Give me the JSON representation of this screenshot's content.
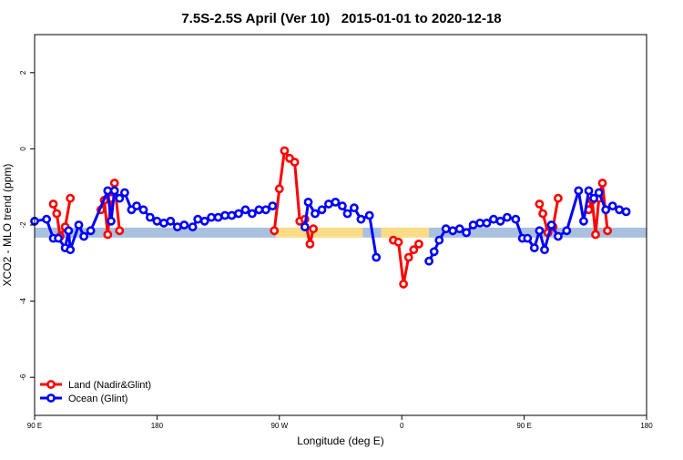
{
  "chart_data": {
    "type": "line",
    "title": "7.5S-2.5S April (Ver 10)   2015-01-01 to 2020-12-18",
    "xlabel": "Longitude (deg E)",
    "ylabel": "XCO2 - MLO trend (ppm)",
    "xlim": [
      90,
      450
    ],
    "ylim": [
      -7,
      3
    ],
    "x_ticks": [
      {
        "value": 90,
        "label": "90 E"
      },
      {
        "value": 162,
        "label": "180"
      },
      {
        "value": 234,
        "label": "90 W"
      },
      {
        "value": 306,
        "label": "0"
      },
      {
        "value": 378,
        "label": "90 E"
      },
      {
        "value": 450,
        "label": "180"
      }
    ],
    "y_ticks": [
      {
        "value": 2,
        "label": "2"
      },
      {
        "value": 0,
        "label": "0"
      },
      {
        "value": -2,
        "label": "-2"
      },
      {
        "value": -4,
        "label": "-4"
      },
      {
        "value": -6,
        "label": "-6"
      }
    ],
    "legend_position": "bottom-left",
    "band": {
      "y": -2.2,
      "segments": [
        {
          "x0": 90,
          "x1": 232,
          "color": "#a9c1df"
        },
        {
          "x0": 232,
          "x1": 283,
          "color": "#fbdc86"
        },
        {
          "x0": 283,
          "x1": 294,
          "color": "#a9c1df"
        },
        {
          "x0": 294,
          "x1": 322,
          "color": "#fbdc86"
        },
        {
          "x0": 322,
          "x1": 450,
          "color": "#a9c1df"
        }
      ]
    },
    "series": [
      {
        "name": "Land (Nadir&Glint)",
        "color": "#ff0000",
        "segments": [
          [
            [
              101,
              -1.45
            ],
            [
              103,
              -1.7
            ],
            [
              105,
              -2.3
            ],
            [
              108,
              -2.05
            ],
            [
              111,
              -1.3
            ]
          ],
          [
            [
              129,
              -1.6
            ],
            [
              131,
              -1.35
            ],
            [
              133,
              -2.25
            ],
            [
              135,
              -1.3
            ],
            [
              137,
              -0.9
            ],
            [
              140,
              -2.15
            ]
          ],
          [
            [
              231,
              -2.15
            ],
            [
              234,
              -1.05
            ],
            [
              237,
              -0.05
            ],
            [
              240,
              -0.25
            ],
            [
              243,
              -0.35
            ],
            [
              246,
              -1.9
            ],
            [
              249,
              -1.85
            ],
            [
              252,
              -2.5
            ],
            [
              254,
              -2.1
            ]
          ],
          [
            [
              301,
              -2.4
            ],
            [
              304,
              -2.45
            ],
            [
              307,
              -3.55
            ],
            [
              310,
              -2.85
            ],
            [
              313,
              -2.65
            ],
            [
              316,
              -2.5
            ]
          ],
          [
            [
              387,
              -1.45
            ],
            [
              389,
              -1.7
            ],
            [
              392,
              -2.2
            ],
            [
              395,
              -2.05
            ],
            [
              398,
              -1.3
            ]
          ],
          [
            [
              416,
              -1.6
            ],
            [
              418,
              -1.35
            ],
            [
              420,
              -2.25
            ],
            [
              422,
              -1.3
            ],
            [
              424,
              -0.9
            ],
            [
              427,
              -2.15
            ]
          ]
        ]
      },
      {
        "name": "Ocean (Glint)",
        "color": "#0000ff",
        "segments": [
          [
            [
              90,
              -1.9
            ],
            [
              97,
              -1.85
            ],
            [
              101,
              -2.35
            ],
            [
              104,
              -2.35
            ],
            [
              108,
              -2.6
            ],
            [
              110,
              -2.15
            ],
            [
              111,
              -2.65
            ],
            [
              116,
              -2.0
            ],
            [
              119,
              -2.3
            ],
            [
              123,
              -2.15
            ],
            [
              133,
              -1.1
            ],
            [
              135,
              -1.9
            ],
            [
              137,
              -1.1
            ],
            [
              140,
              -1.3
            ],
            [
              143,
              -1.15
            ],
            [
              147,
              -1.6
            ],
            [
              150,
              -1.5
            ],
            [
              154,
              -1.6
            ],
            [
              158,
              -1.8
            ],
            [
              162,
              -1.9
            ],
            [
              166,
              -1.95
            ],
            [
              170,
              -1.9
            ],
            [
              174,
              -2.05
            ],
            [
              178,
              -2.0
            ],
            [
              183,
              -2.05
            ],
            [
              186,
              -1.85
            ],
            [
              190,
              -1.9
            ],
            [
              194,
              -1.8
            ],
            [
              198,
              -1.8
            ],
            [
              202,
              -1.75
            ],
            [
              206,
              -1.75
            ],
            [
              210,
              -1.7
            ],
            [
              214,
              -1.6
            ],
            [
              218,
              -1.7
            ],
            [
              222,
              -1.6
            ],
            [
              226,
              -1.6
            ],
            [
              230,
              -1.5
            ]
          ],
          [
            [
              249,
              -2.05
            ],
            [
              251,
              -1.4
            ],
            [
              255,
              -1.7
            ],
            [
              259,
              -1.6
            ],
            [
              263,
              -1.45
            ],
            [
              267,
              -1.4
            ],
            [
              271,
              -1.5
            ],
            [
              274,
              -1.7
            ],
            [
              278,
              -1.55
            ],
            [
              282,
              -1.85
            ],
            [
              287,
              -1.75
            ],
            [
              291,
              -2.85
            ]
          ],
          [
            [
              322,
              -2.95
            ],
            [
              325,
              -2.7
            ],
            [
              328,
              -2.4
            ],
            [
              332,
              -2.1
            ],
            [
              336,
              -2.15
            ],
            [
              340,
              -2.1
            ],
            [
              344,
              -2.2
            ],
            [
              348,
              -2.0
            ],
            [
              352,
              -1.95
            ],
            [
              356,
              -1.95
            ],
            [
              360,
              -1.85
            ],
            [
              364,
              -1.9
            ],
            [
              368,
              -1.8
            ],
            [
              373,
              -1.85
            ],
            [
              377,
              -2.35
            ],
            [
              380,
              -2.35
            ],
            [
              384,
              -2.6
            ],
            [
              387,
              -2.15
            ],
            [
              390,
              -2.65
            ],
            [
              394,
              -2.0
            ],
            [
              398,
              -2.3
            ],
            [
              403,
              -2.15
            ],
            [
              410,
              -1.1
            ],
            [
              413,
              -1.9
            ],
            [
              416,
              -1.1
            ],
            [
              419,
              -1.3
            ],
            [
              422,
              -1.15
            ],
            [
              426,
              -1.6
            ],
            [
              430,
              -1.5
            ],
            [
              434,
              -1.6
            ],
            [
              438,
              -1.65
            ]
          ]
        ]
      }
    ]
  }
}
